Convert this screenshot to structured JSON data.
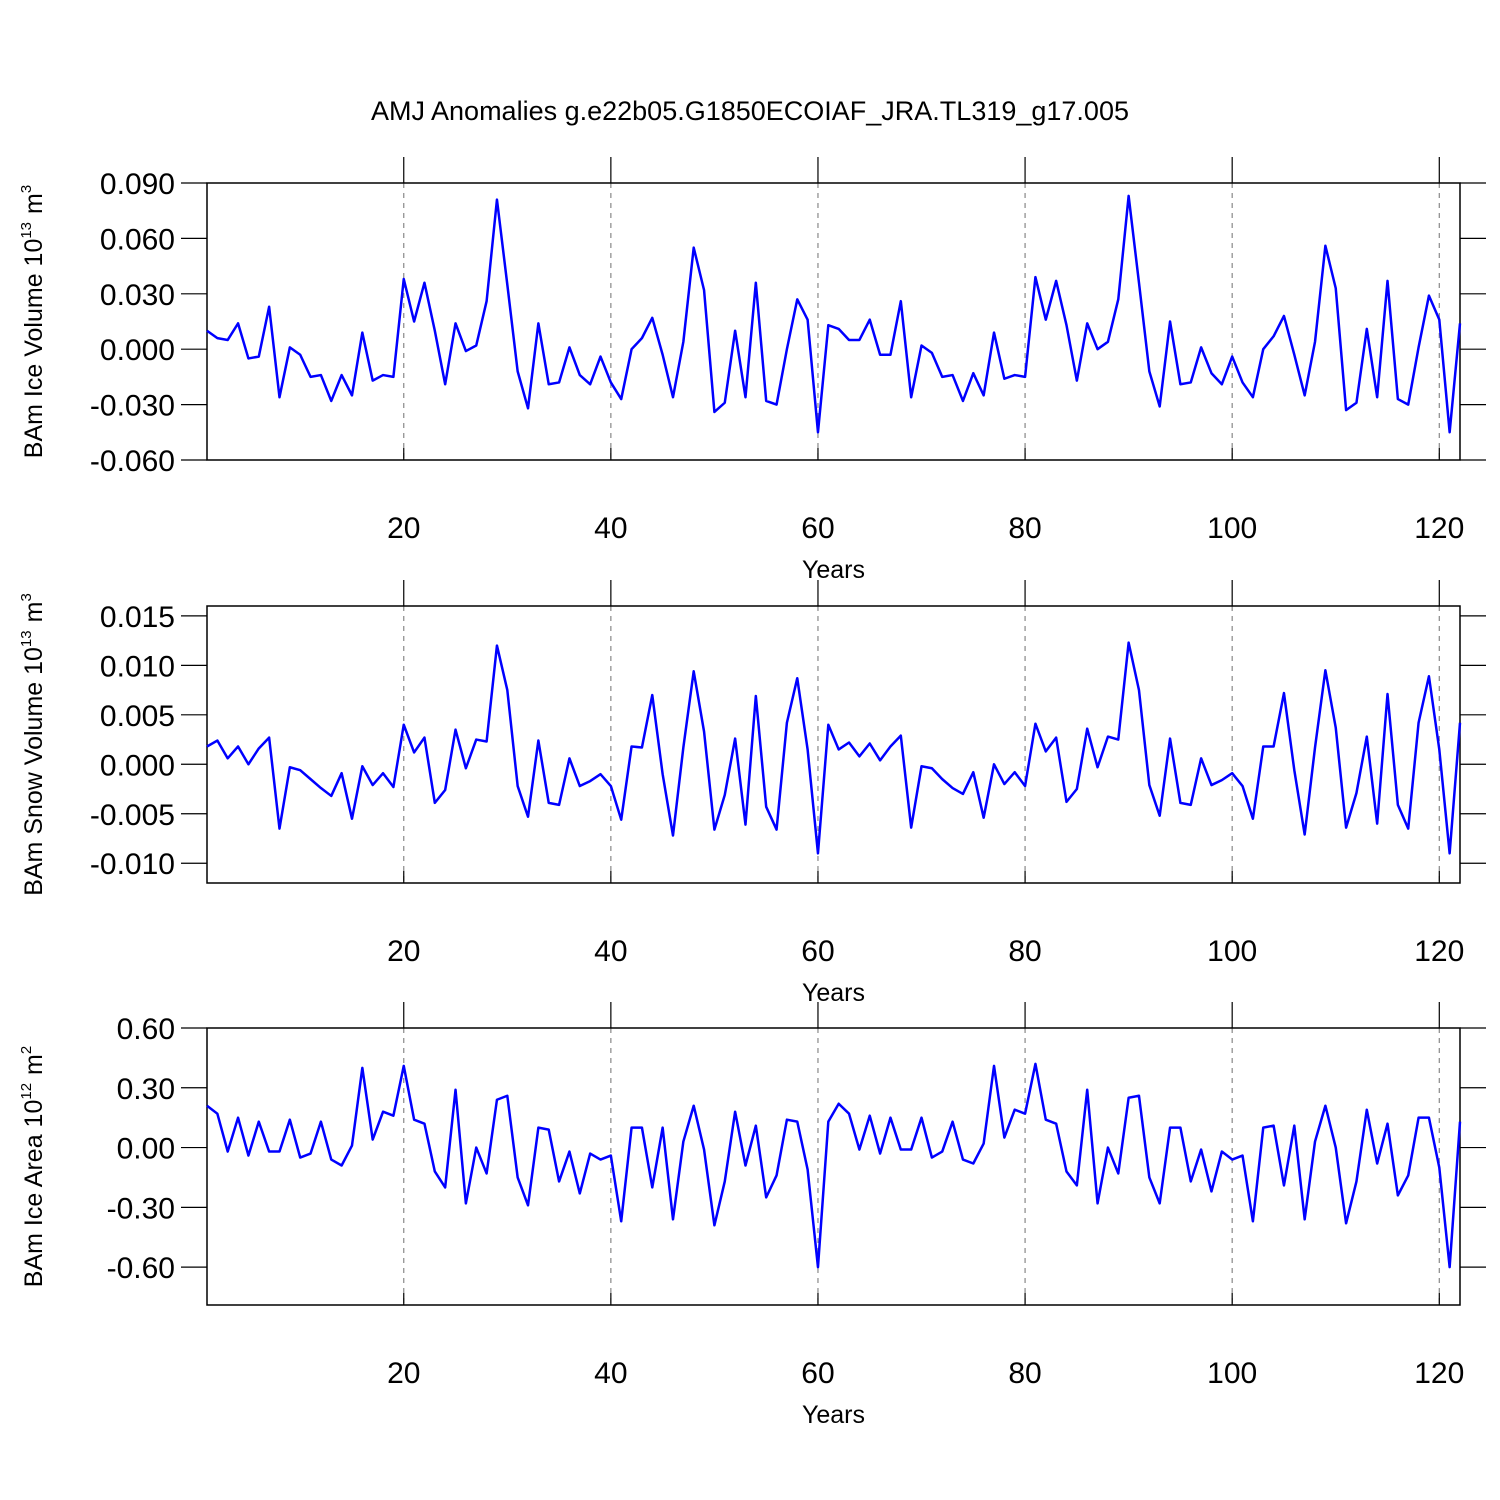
{
  "chart_data": [
    {
      "type": "line",
      "title": "AMJ Anomalies g.e22b05.G1850ECOIAF_JRA.TL319_g17.005",
      "xlabel": "Years",
      "ylabel": {
        "text": "BAm Ice Volume 10",
        "exponent": "13",
        "unit": "m",
        "unit_exponent": "3"
      },
      "color": "#0000ff",
      "grid": true,
      "xlim": [
        1,
        122
      ],
      "xticks": [
        20,
        40,
        60,
        80,
        100,
        120
      ],
      "ylim": [
        -0.06,
        0.09
      ],
      "yticks": [
        {
          "value": -0.06,
          "label": "-0.060"
        },
        {
          "value": -0.03,
          "label": "-0.030"
        },
        {
          "value": 0,
          "label": "0.000"
        },
        {
          "value": 0.03,
          "label": "0.030"
        },
        {
          "value": 0.06,
          "label": "0.060"
        },
        {
          "value": 0.09,
          "label": "0.090"
        }
      ],
      "x": [
        1,
        2,
        3,
        4,
        5,
        6,
        7,
        8,
        9,
        10,
        11,
        12,
        13,
        14,
        15,
        16,
        17,
        18,
        19,
        20,
        21,
        22,
        23,
        24,
        25,
        26,
        27,
        28,
        29,
        30,
        31,
        32,
        33,
        34,
        35,
        36,
        37,
        38,
        39,
        40,
        41,
        42,
        43,
        44,
        45,
        46,
        47,
        48,
        49,
        50,
        51,
        52,
        53,
        54,
        55,
        56,
        57,
        58,
        59,
        60,
        61,
        62,
        63,
        64,
        65,
        66,
        67,
        68,
        69,
        70,
        71,
        72,
        73,
        74,
        75,
        76,
        77,
        78,
        79,
        80,
        81,
        82,
        83,
        84,
        85,
        86,
        87,
        88,
        89,
        90,
        91,
        92,
        93,
        94,
        95,
        96,
        97,
        98,
        99,
        100,
        101,
        102,
        103,
        104,
        105,
        106,
        107,
        108,
        109,
        110,
        111,
        112,
        113,
        114,
        115,
        116,
        117,
        118,
        119,
        120,
        121,
        122
      ],
      "values": [
        0.01,
        0.006,
        0.005,
        0.014,
        -0.005,
        -0.004,
        0.023,
        -0.026,
        0.001,
        -0.003,
        -0.015,
        -0.014,
        -0.028,
        -0.014,
        -0.025,
        0.009,
        -0.017,
        -0.014,
        -0.015,
        0.038,
        0.015,
        0.036,
        0.01,
        -0.019,
        0.014,
        -0.001,
        0.002,
        0.026,
        0.081,
        0.035,
        -0.012,
        -0.032,
        0.014,
        -0.019,
        -0.018,
        0.001,
        -0.014,
        -0.019,
        -0.004,
        -0.018,
        -0.027,
        0.0,
        0.006,
        0.017,
        -0.003,
        -0.026,
        0.004,
        0.055,
        0.032,
        -0.034,
        -0.029,
        0.01,
        -0.026,
        0.036,
        -0.028,
        -0.03,
        0.0,
        0.027,
        0.016,
        -0.045,
        0.013,
        0.011,
        0.005,
        0.005,
        0.016,
        -0.003,
        -0.003,
        0.026,
        -0.026,
        0.002,
        -0.002,
        -0.015,
        -0.014,
        -0.028,
        -0.013,
        -0.025,
        0.009,
        -0.016,
        -0.014,
        -0.015,
        0.039,
        0.016,
        0.037,
        0.013,
        -0.017,
        0.014,
        0.0,
        0.004,
        0.027,
        0.083,
        0.036,
        -0.012,
        -0.031,
        0.015,
        -0.019,
        -0.018,
        0.001,
        -0.013,
        -0.019,
        -0.004,
        -0.018,
        -0.026,
        0.0,
        0.007,
        0.018,
        -0.003,
        -0.025,
        0.004,
        0.056,
        0.033,
        -0.033,
        -0.029,
        0.011,
        -0.026,
        0.037,
        -0.027,
        -0.03,
        0.001,
        0.029,
        0.016,
        -0.045,
        0.014
      ]
    },
    {
      "type": "line",
      "xlabel": "Years",
      "ylabel": {
        "text": "BAm Snow Volume 10",
        "exponent": "13",
        "unit": "m",
        "unit_exponent": "3"
      },
      "color": "#0000ff",
      "grid": true,
      "xlim": [
        1,
        122
      ],
      "xticks": [
        20,
        40,
        60,
        80,
        100,
        120
      ],
      "ylim": [
        -0.012,
        0.016
      ],
      "yticks": [
        {
          "value": -0.01,
          "label": "-0.010"
        },
        {
          "value": -0.005,
          "label": "-0.005"
        },
        {
          "value": 0,
          "label": "0.000"
        },
        {
          "value": 0.005,
          "label": "0.005"
        },
        {
          "value": 0.01,
          "label": "0.010"
        },
        {
          "value": 0.015,
          "label": "0.015"
        }
      ],
      "x": [
        1,
        2,
        3,
        4,
        5,
        6,
        7,
        8,
        9,
        10,
        11,
        12,
        13,
        14,
        15,
        16,
        17,
        18,
        19,
        20,
        21,
        22,
        23,
        24,
        25,
        26,
        27,
        28,
        29,
        30,
        31,
        32,
        33,
        34,
        35,
        36,
        37,
        38,
        39,
        40,
        41,
        42,
        43,
        44,
        45,
        46,
        47,
        48,
        49,
        50,
        51,
        52,
        53,
        54,
        55,
        56,
        57,
        58,
        59,
        60,
        61,
        62,
        63,
        64,
        65,
        66,
        67,
        68,
        69,
        70,
        71,
        72,
        73,
        74,
        75,
        76,
        77,
        78,
        79,
        80,
        81,
        82,
        83,
        84,
        85,
        86,
        87,
        88,
        89,
        90,
        91,
        92,
        93,
        94,
        95,
        96,
        97,
        98,
        99,
        100,
        101,
        102,
        103,
        104,
        105,
        106,
        107,
        108,
        109,
        110,
        111,
        112,
        113,
        114,
        115,
        116,
        117,
        118,
        119,
        120,
        121,
        122
      ],
      "values": [
        0.0018,
        0.0024,
        0.0006,
        0.0018,
        0.0,
        0.0016,
        0.0027,
        -0.0065,
        -0.0003,
        -0.0006,
        -0.0015,
        -0.0024,
        -0.0032,
        -0.0009,
        -0.0055,
        -0.0002,
        -0.0021,
        -0.0009,
        -0.0023,
        0.004,
        0.0012,
        0.0027,
        -0.0039,
        -0.0026,
        0.0035,
        -0.0004,
        0.0025,
        0.0023,
        0.012,
        0.0075,
        -0.0022,
        -0.0053,
        0.0024,
        -0.0039,
        -0.0041,
        0.0006,
        -0.0022,
        -0.0017,
        -0.001,
        -0.0022,
        -0.0056,
        0.0018,
        0.0017,
        0.007,
        -0.001,
        -0.0072,
        0.0017,
        0.0094,
        0.0033,
        -0.0066,
        -0.0031,
        0.0026,
        -0.0061,
        0.0069,
        -0.0043,
        -0.0066,
        0.0042,
        0.0087,
        0.0015,
        -0.009,
        0.004,
        0.0015,
        0.0022,
        0.0008,
        0.0021,
        0.0004,
        0.0018,
        0.0029,
        -0.0064,
        -0.0002,
        -0.0004,
        -0.0015,
        -0.0024,
        -0.003,
        -0.0008,
        -0.0054,
        0.0,
        -0.002,
        -0.0008,
        -0.0022,
        0.0041,
        0.0013,
        0.0027,
        -0.0038,
        -0.0025,
        0.0036,
        -0.0003,
        0.0028,
        0.0025,
        0.0123,
        0.0075,
        -0.0021,
        -0.0052,
        0.0026,
        -0.0039,
        -0.0041,
        0.0006,
        -0.0021,
        -0.0016,
        -0.0009,
        -0.0022,
        -0.0055,
        0.0018,
        0.0018,
        0.0072,
        -0.0006,
        -0.0071,
        0.0017,
        0.0095,
        0.0037,
        -0.0064,
        -0.0029,
        0.0028,
        -0.006,
        0.0071,
        -0.0041,
        -0.0065,
        0.0042,
        0.0089,
        0.0015,
        -0.009,
        0.0042
      ]
    },
    {
      "type": "line",
      "xlabel": "Years",
      "ylabel": {
        "text": "BAm Ice Area 10",
        "exponent": "12",
        "unit": "m",
        "unit_exponent": "2"
      },
      "color": "#0000ff",
      "grid": true,
      "xlim": [
        1,
        122
      ],
      "xticks": [
        20,
        40,
        60,
        80,
        100,
        120
      ],
      "ylim": [
        -0.79,
        0.6
      ],
      "yticks": [
        {
          "value": -0.6,
          "label": "-0.60"
        },
        {
          "value": -0.3,
          "label": "-0.30"
        },
        {
          "value": 0,
          "label": "0.00"
        },
        {
          "value": 0.3,
          "label": "0.30"
        },
        {
          "value": 0.6,
          "label": "0.60"
        }
      ],
      "x": [
        1,
        2,
        3,
        4,
        5,
        6,
        7,
        8,
        9,
        10,
        11,
        12,
        13,
        14,
        15,
        16,
        17,
        18,
        19,
        20,
        21,
        22,
        23,
        24,
        25,
        26,
        27,
        28,
        29,
        30,
        31,
        32,
        33,
        34,
        35,
        36,
        37,
        38,
        39,
        40,
        41,
        42,
        43,
        44,
        45,
        46,
        47,
        48,
        49,
        50,
        51,
        52,
        53,
        54,
        55,
        56,
        57,
        58,
        59,
        60,
        61,
        62,
        63,
        64,
        65,
        66,
        67,
        68,
        69,
        70,
        71,
        72,
        73,
        74,
        75,
        76,
        77,
        78,
        79,
        80,
        81,
        82,
        83,
        84,
        85,
        86,
        87,
        88,
        89,
        90,
        91,
        92,
        93,
        94,
        95,
        96,
        97,
        98,
        99,
        100,
        101,
        102,
        103,
        104,
        105,
        106,
        107,
        108,
        109,
        110,
        111,
        112,
        113,
        114,
        115,
        116,
        117,
        118,
        119,
        120,
        121,
        122
      ],
      "values": [
        0.21,
        0.17,
        -0.02,
        0.15,
        -0.04,
        0.13,
        -0.02,
        -0.02,
        0.14,
        -0.05,
        -0.03,
        0.13,
        -0.06,
        -0.09,
        0.01,
        0.4,
        0.04,
        0.18,
        0.16,
        0.41,
        0.14,
        0.12,
        -0.12,
        -0.2,
        0.29,
        -0.28,
        0.0,
        -0.13,
        0.24,
        0.26,
        -0.15,
        -0.29,
        0.1,
        0.09,
        -0.17,
        -0.02,
        -0.23,
        -0.03,
        -0.06,
        -0.04,
        -0.37,
        0.1,
        0.1,
        -0.2,
        0.1,
        -0.36,
        0.03,
        0.21,
        -0.01,
        -0.39,
        -0.17,
        0.18,
        -0.09,
        0.11,
        -0.25,
        -0.14,
        0.14,
        0.13,
        -0.11,
        -0.6,
        0.13,
        0.22,
        0.17,
        -0.01,
        0.16,
        -0.03,
        0.15,
        -0.01,
        -0.01,
        0.15,
        -0.05,
        -0.02,
        0.13,
        -0.06,
        -0.08,
        0.02,
        0.41,
        0.05,
        0.19,
        0.17,
        0.42,
        0.14,
        0.12,
        -0.12,
        -0.19,
        0.29,
        -0.28,
        0.0,
        -0.13,
        0.25,
        0.26,
        -0.15,
        -0.28,
        0.1,
        0.1,
        -0.17,
        -0.01,
        -0.22,
        -0.02,
        -0.06,
        -0.04,
        -0.37,
        0.1,
        0.11,
        -0.19,
        0.11,
        -0.36,
        0.03,
        0.21,
        0.0,
        -0.38,
        -0.17,
        0.19,
        -0.08,
        0.12,
        -0.24,
        -0.14,
        0.15,
        0.15,
        -0.1,
        -0.6,
        0.13
      ]
    }
  ]
}
